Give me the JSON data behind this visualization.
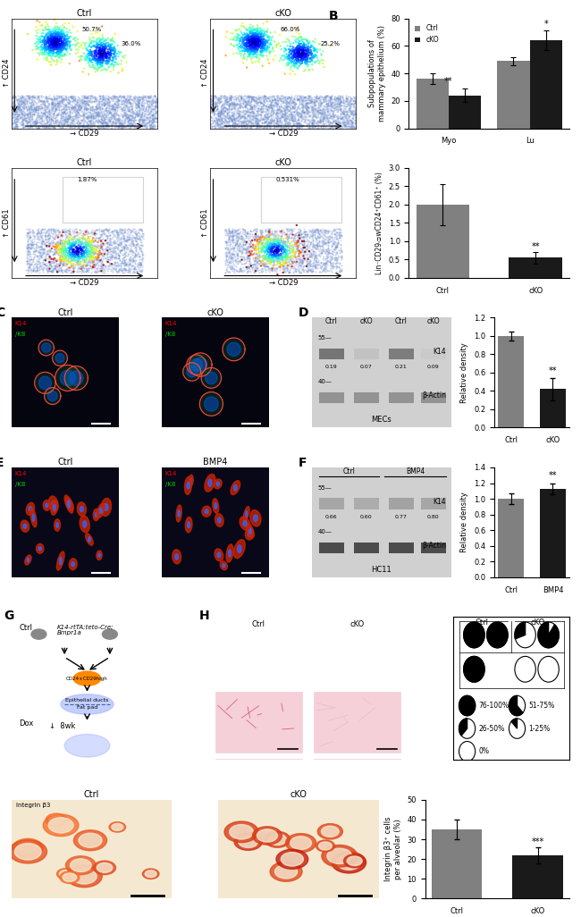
{
  "panel_B_top": {
    "categories": [
      "Myo",
      "Lu"
    ],
    "ctrl_values": [
      36,
      49
    ],
    "cko_values": [
      24,
      64
    ],
    "ctrl_err": [
      4,
      3
    ],
    "cko_err": [
      5,
      7
    ],
    "ylabel": "Subpopulations of\nmammary epithelium (%)",
    "ylim": [
      0,
      80
    ],
    "yticks": [
      0,
      20,
      40,
      60,
      80
    ],
    "sig_myo": "**",
    "sig_lu": "*",
    "ctrl_color": "#808080",
    "cko_color": "#1a1a1a"
  },
  "panel_B_bot": {
    "categories": [
      "Ctrl",
      "cKO"
    ],
    "ctrl_values": [
      2.0
    ],
    "cko_values": [
      0.55
    ],
    "ctrl_err": [
      0.55
    ],
    "cko_err": [
      0.15
    ],
    "ylabel": "Lin⁻CD29ᴞwCD24⁺CD61⁺ (%)",
    "ylim": [
      0,
      3
    ],
    "yticks": [
      0,
      0.5,
      1,
      1.5,
      2,
      2.5,
      3
    ],
    "sig": "**",
    "ctrl_color": "#808080",
    "cko_color": "#1a1a1a"
  },
  "panel_D_bar": {
    "categories": [
      "Ctrl",
      "cKO"
    ],
    "ctrl_val": 1.0,
    "cko_val": 0.42,
    "ctrl_err": 0.05,
    "cko_err": 0.12,
    "ylabel": "Relative density",
    "ylim": [
      0,
      1.2
    ],
    "yticks": [
      0,
      0.2,
      0.4,
      0.6,
      0.8,
      1.0,
      1.2
    ],
    "sig": "**",
    "ctrl_color": "#808080",
    "cko_color": "#1a1a1a"
  },
  "panel_F_bar": {
    "categories": [
      "Ctrl",
      "BMP4"
    ],
    "ctrl_val": 1.0,
    "bmp4_val": 1.13,
    "ctrl_err": 0.07,
    "bmp4_err": 0.07,
    "ylabel": "Relative density",
    "ylim": [
      0,
      1.4
    ],
    "yticks": [
      0,
      0.2,
      0.4,
      0.6,
      0.8,
      1.0,
      1.2,
      1.4
    ],
    "sig": "**",
    "ctrl_color": "#808080",
    "bmp4_color": "#1a1a1a"
  },
  "panel_I_bar": {
    "categories": [
      "Ctrl",
      "cKO"
    ],
    "ctrl_val": 35,
    "cko_val": 22,
    "ctrl_err": 5,
    "cko_err": 4,
    "ylabel": "Integrin β3⁺ cells\nper alveolar (%)",
    "ylim": [
      0,
      50
    ],
    "yticks": [
      0,
      10,
      20,
      30,
      40,
      50
    ],
    "sig": "***",
    "ctrl_color": "#808080",
    "cko_color": "#1a1a1a"
  }
}
